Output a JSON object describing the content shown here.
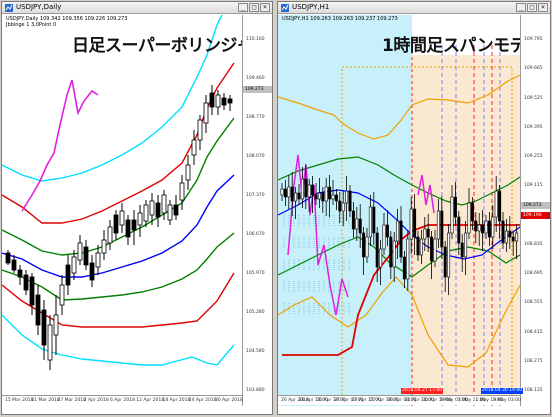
{
  "left_chart": {
    "window_title": "USDJPY,Daily",
    "info_line1": "USDJPY,Daily  109.342 109.356 109.226 109.273",
    "info_line2": "Jbbinge 1 3,0Point 0",
    "annotation": "日足スーパーボリンジャー",
    "y_axis_labels": [
      "110.160",
      "109.460",
      "108.770",
      "108.070",
      "107.370",
      "106.670",
      "105.970",
      "105.280",
      "104.580",
      "103.880"
    ],
    "x_axis_labels": [
      "15 Mar 2018",
      "21 Mar 2018",
      "27 Mar 2018",
      "2 Apr 2018",
      "6 Apr 2018",
      "12 Apr 2018",
      "18 Apr 2018",
      "24 Apr 2018",
      "30 Apr 2018"
    ],
    "current_price": "109.273",
    "colors": {
      "up_candle": "#ffffff",
      "down_candle": "#000000",
      "band_red": "#e00000",
      "band_green": "#008000",
      "band_blue": "#0000ff",
      "band_cyan": "#00e0ff",
      "lagging_span": "#e020e0"
    }
  },
  "right_chart": {
    "window_title": "USDJPY,H1",
    "info_line1": "USDJPY,H1  109.263 109.263 109.237 109.273",
    "annotation": "1時間足スパンモデル",
    "y_axis_labels": [
      "109.795",
      "109.665",
      "109.525",
      "109.395",
      "109.255",
      "109.115",
      "108.975",
      "108.835",
      "108.695",
      "108.555",
      "108.415",
      "108.275",
      "108.135"
    ],
    "x_axis_labels": [
      "26 Apr 2018",
      "26 Apr 11:00",
      "26 Apr 19:00",
      "27 Apr 03:00",
      "27 Apr 11:00",
      "27 Apr 19:00",
      "30 Apr 03:00",
      "30 Apr 11:00",
      "30 Apr 19:00",
      "1 May 03:00",
      "1 May 11:00",
      "1 May 19:00",
      "2 May 03:00"
    ],
    "current_price": "109.273",
    "red_level_price": "109.190",
    "time_markers": [
      "2018.04.27 17:00",
      "2018.04.30 19:00"
    ],
    "colors": {
      "band_orange": "#f0a000",
      "band_green": "#008000",
      "band_blue": "#0000ff",
      "lagging_span": "#e020e0",
      "level": "#e00000",
      "cloud_blue": "#c8f0fa",
      "cloud_orange": "#fae8d0",
      "marker_blue": "#0040ff",
      "marker_red": "#ff2020"
    }
  }
}
